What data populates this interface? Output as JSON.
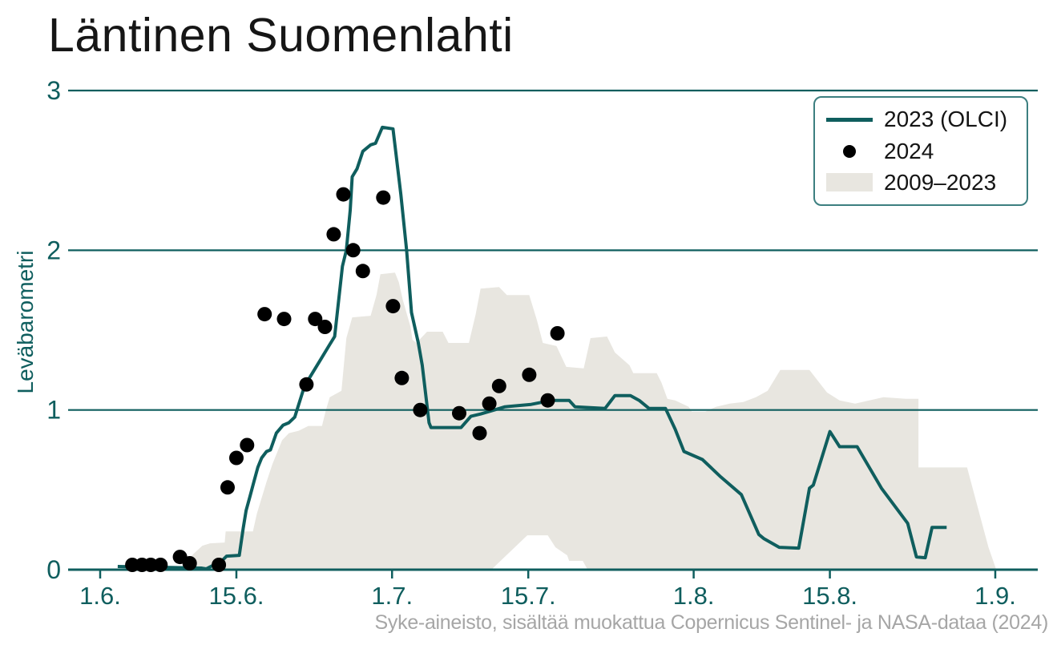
{
  "title": "Läntinen Suomenlahti",
  "caption": "Syke-aineisto, sisältää muokattua Copernicus Sentinel- ja NASA-dataa (2024)",
  "colors": {
    "teal": "#0f5e5e",
    "band": "#e8e6e0",
    "dots": "#000000",
    "legend_border": "#3c7f80",
    "caption_gray": "#a6a6a6",
    "title_black": "#161616"
  },
  "legend": {
    "items": [
      {
        "label": "2023 (OLCI)",
        "swatch": "line"
      },
      {
        "label": "2024",
        "swatch": "dot"
      },
      {
        "label": "2009–2023",
        "swatch": "patch"
      }
    ]
  },
  "chart_data": {
    "type": "line",
    "title": "Läntinen Suomenlahti",
    "xlabel": "",
    "ylabel": "Leväbarometri",
    "ylim": [
      0,
      3
    ],
    "grid": "horizontal",
    "legend_position": "upper right",
    "x_unit": "days since 1 June",
    "y_ticks": [
      {
        "label": "0",
        "value": 0
      },
      {
        "label": "1",
        "value": 1
      },
      {
        "label": "2",
        "value": 2
      },
      {
        "label": "3",
        "value": 3
      }
    ],
    "x_ticks": [
      {
        "label": "1.6.",
        "day": 0
      },
      {
        "label": "15.6.",
        "day": 14
      },
      {
        "label": "1.7.",
        "day": 30
      },
      {
        "label": "15.7.",
        "day": 44
      },
      {
        "label": "1.8.",
        "day": 61
      },
      {
        "label": "15.8.",
        "day": 75
      },
      {
        "label": "1.9.",
        "day": 92
      }
    ],
    "series": [
      {
        "name": "2009–2023",
        "type": "band",
        "color": "#e8e6e0",
        "upper": [
          [
            8.2,
            0.0
          ],
          [
            9.6,
            0.1
          ],
          [
            10.5,
            0.15
          ],
          [
            11.3,
            0.165
          ],
          [
            12.8,
            0.17
          ],
          [
            12.9,
            0.24
          ],
          [
            15.7,
            0.24
          ],
          [
            16.1,
            0.35
          ],
          [
            17.1,
            0.55
          ],
          [
            17.7,
            0.66
          ],
          [
            18.7,
            0.81
          ],
          [
            19.4,
            0.855
          ],
          [
            20.4,
            0.87
          ],
          [
            21.4,
            0.9
          ],
          [
            22.8,
            0.9
          ],
          [
            23.2,
            1.0
          ],
          [
            23.6,
            1.08
          ],
          [
            24.8,
            1.12
          ],
          [
            25.3,
            1.45
          ],
          [
            25.9,
            1.58
          ],
          [
            27.8,
            1.59
          ],
          [
            28.4,
            1.72
          ],
          [
            28.8,
            1.85
          ],
          [
            30.3,
            1.86
          ],
          [
            30.7,
            1.8
          ],
          [
            31.1,
            1.69
          ],
          [
            31.9,
            1.52
          ],
          [
            32.1,
            1.44
          ],
          [
            32.5,
            1.42
          ],
          [
            33.6,
            1.49
          ],
          [
            35.2,
            1.49
          ],
          [
            35.8,
            1.42
          ],
          [
            37.9,
            1.42
          ],
          [
            38.6,
            1.6
          ],
          [
            39.1,
            1.76
          ],
          [
            41.0,
            1.77
          ],
          [
            41.8,
            1.72
          ],
          [
            44.1,
            1.72
          ],
          [
            44.9,
            1.56
          ],
          [
            45.5,
            1.42
          ],
          [
            46.9,
            1.4
          ],
          [
            47.9,
            1.27
          ],
          [
            49.7,
            1.26
          ],
          [
            50.4,
            1.45
          ],
          [
            52.1,
            1.46
          ],
          [
            52.9,
            1.36
          ],
          [
            54.4,
            1.28
          ],
          [
            54.8,
            1.23
          ],
          [
            57.2,
            1.23
          ],
          [
            57.7,
            1.17
          ],
          [
            58.3,
            1.07
          ],
          [
            59.1,
            1.06
          ],
          [
            60.5,
            1.02
          ],
          [
            60.8,
            0.99
          ],
          [
            62.2,
            0.99
          ],
          [
            63.3,
            1.02
          ],
          [
            64.7,
            1.04
          ],
          [
            66.1,
            1.05
          ],
          [
            67.4,
            1.08
          ],
          [
            68.6,
            1.12
          ],
          [
            69.9,
            1.25
          ],
          [
            72.9,
            1.25
          ],
          [
            74.7,
            1.11
          ],
          [
            76.0,
            1.06
          ],
          [
            77.6,
            1.04
          ],
          [
            80.5,
            1.08
          ],
          [
            82.8,
            1.07
          ],
          [
            84.1,
            1.07
          ],
          [
            84.1,
            0.64
          ],
          [
            89.1,
            0.64
          ],
          [
            90.2,
            0.39
          ],
          [
            91.3,
            0.14
          ],
          [
            92.1,
            0.0
          ]
        ],
        "lower": [
          [
            8.2,
            0.0
          ],
          [
            40.2,
            0.0
          ],
          [
            43.9,
            0.215
          ],
          [
            46.0,
            0.215
          ],
          [
            46.8,
            0.14
          ],
          [
            48.0,
            0.09
          ],
          [
            48.2,
            0.055
          ],
          [
            49.6,
            0.055
          ],
          [
            50.1,
            0.0
          ],
          [
            92.1,
            0.0
          ]
        ]
      },
      {
        "name": "2023 (OLCI)",
        "type": "line",
        "color": "#0f5e5e",
        "points": [
          [
            1.8,
            0.02
          ],
          [
            10.4,
            0.01
          ],
          [
            10.9,
            0.005
          ],
          [
            11.7,
            0.03
          ],
          [
            12.5,
            0.055
          ],
          [
            13.0,
            0.085
          ],
          [
            14.3,
            0.09
          ],
          [
            14.7,
            0.26
          ],
          [
            15.0,
            0.37
          ],
          [
            15.4,
            0.46
          ],
          [
            15.8,
            0.55
          ],
          [
            16.2,
            0.64
          ],
          [
            16.6,
            0.7
          ],
          [
            17.1,
            0.74
          ],
          [
            17.5,
            0.75
          ],
          [
            18.1,
            0.855
          ],
          [
            18.8,
            0.905
          ],
          [
            19.4,
            0.92
          ],
          [
            20.0,
            0.955
          ],
          [
            21.0,
            1.15
          ],
          [
            22.7,
            1.32
          ],
          [
            23.5,
            1.4
          ],
          [
            24.1,
            1.46
          ],
          [
            24.9,
            1.9
          ],
          [
            25.3,
            2.0
          ],
          [
            25.7,
            2.25
          ],
          [
            25.9,
            2.46
          ],
          [
            26.4,
            2.51
          ],
          [
            27.0,
            2.62
          ],
          [
            27.8,
            2.66
          ],
          [
            28.3,
            2.67
          ],
          [
            29.0,
            2.77
          ],
          [
            30.1,
            2.76
          ],
          [
            30.9,
            2.35
          ],
          [
            31.5,
            2.0
          ],
          [
            32.0,
            1.61
          ],
          [
            32.7,
            1.42
          ],
          [
            33.1,
            1.28
          ],
          [
            33.8,
            0.92
          ],
          [
            34.0,
            0.89
          ],
          [
            37.1,
            0.89
          ],
          [
            38.1,
            0.96
          ],
          [
            39.1,
            0.975
          ],
          [
            40.5,
            1.0
          ],
          [
            41.6,
            1.02
          ],
          [
            44.3,
            1.035
          ],
          [
            46.4,
            1.06
          ],
          [
            48.2,
            1.06
          ],
          [
            48.8,
            1.02
          ],
          [
            51.9,
            1.01
          ],
          [
            52.9,
            1.09
          ],
          [
            54.5,
            1.09
          ],
          [
            55.4,
            1.06
          ],
          [
            56.4,
            1.01
          ],
          [
            58.1,
            1.01
          ],
          [
            59.1,
            0.88
          ],
          [
            60.0,
            0.74
          ],
          [
            61.9,
            0.69
          ],
          [
            63.8,
            0.58
          ],
          [
            65.9,
            0.47
          ],
          [
            67.7,
            0.22
          ],
          [
            68.2,
            0.195
          ],
          [
            69.8,
            0.14
          ],
          [
            71.8,
            0.135
          ],
          [
            72.9,
            0.51
          ],
          [
            73.3,
            0.53
          ],
          [
            75.0,
            0.865
          ],
          [
            76.0,
            0.77
          ],
          [
            77.8,
            0.77
          ],
          [
            80.3,
            0.51
          ],
          [
            83.0,
            0.29
          ],
          [
            83.9,
            0.08
          ],
          [
            84.8,
            0.075
          ],
          [
            85.5,
            0.265
          ],
          [
            87.0,
            0.265
          ]
        ]
      },
      {
        "name": "2024",
        "type": "scatter",
        "color": "#000000",
        "points": [
          [
            3.3,
            0.03
          ],
          [
            4.3,
            0.03
          ],
          [
            5.2,
            0.03
          ],
          [
            6.2,
            0.03
          ],
          [
            8.2,
            0.08
          ],
          [
            9.2,
            0.04
          ],
          [
            12.2,
            0.03
          ],
          [
            13.1,
            0.515
          ],
          [
            14.0,
            0.7
          ],
          [
            15.1,
            0.78
          ],
          [
            16.9,
            1.6
          ],
          [
            18.9,
            1.57
          ],
          [
            21.2,
            1.16
          ],
          [
            22.1,
            1.57
          ],
          [
            23.1,
            1.52
          ],
          [
            24.0,
            2.1
          ],
          [
            25.0,
            2.35
          ],
          [
            26.0,
            2.0
          ],
          [
            27.0,
            1.87
          ],
          [
            29.1,
            2.33
          ],
          [
            30.1,
            1.65
          ],
          [
            31.0,
            1.2
          ],
          [
            32.9,
            1.0
          ],
          [
            36.9,
            0.98
          ],
          [
            39.0,
            0.855
          ],
          [
            40.0,
            1.04
          ],
          [
            41.0,
            1.15
          ],
          [
            44.1,
            1.22
          ],
          [
            46.0,
            1.06
          ],
          [
            47.0,
            1.48
          ]
        ]
      }
    ]
  }
}
